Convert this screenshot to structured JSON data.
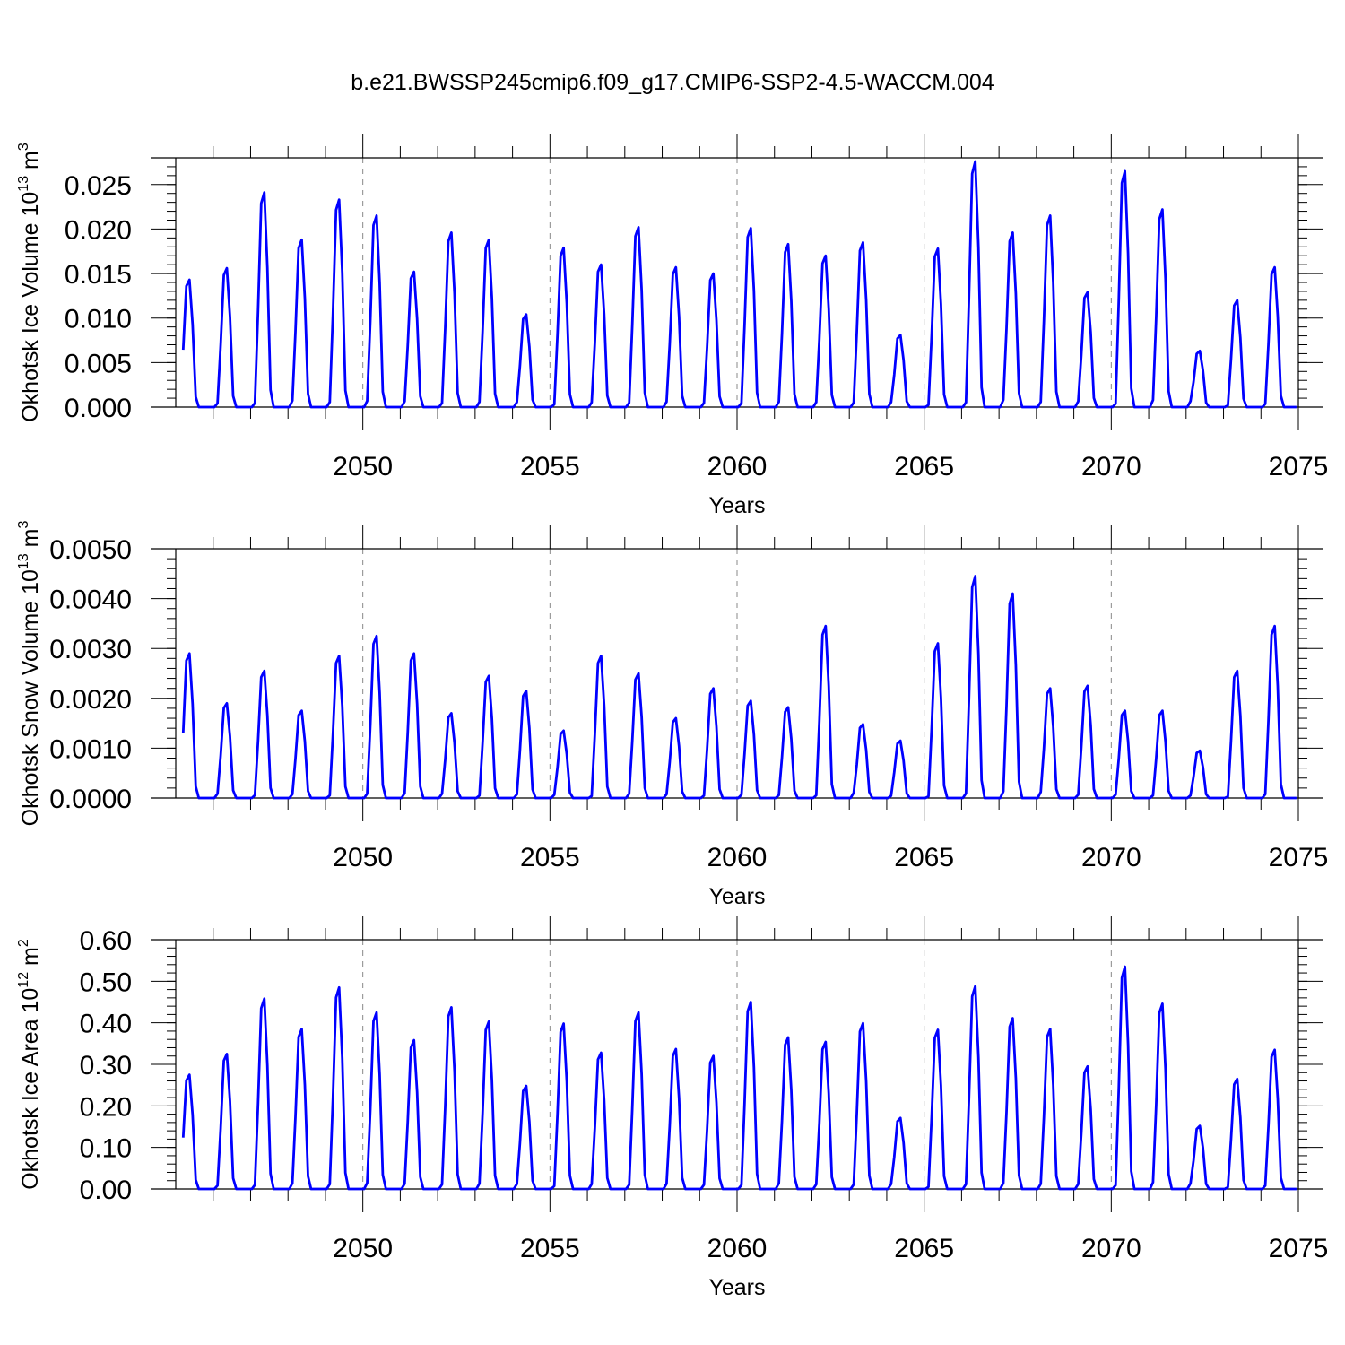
{
  "figure_title": "b.e21.BWSSP245cmip6.f09_g17.CMIP6-SSP2-4.5-WACCM.004",
  "colors": {
    "series": "#0000ff",
    "axis": "#000000",
    "grid": "#888888"
  },
  "chart_data": [
    {
      "type": "line",
      "ylabel": {
        "main": "Okhotsk Ice Volume 10",
        "exp": "13",
        "unit": " m",
        "unit_exp": "3"
      },
      "xlabel": "Years",
      "xlim": [
        2045,
        2075
      ],
      "ylim": [
        0.0,
        0.028
      ],
      "grid": "vertical dashed at 2050, 2055, 2060, 2065, 2070",
      "xticks": [
        "2050",
        "2055",
        "2060",
        "2065",
        "2070",
        "2075"
      ],
      "yticks": [
        "0.000",
        "0.005",
        "0.010",
        "0.015",
        "0.020",
        "0.025"
      ],
      "series": [
        {
          "name": "Okhotsk Ice Volume",
          "peaks": [
            0.0143,
            0.0156,
            0.0241,
            0.0188,
            0.0233,
            0.0215,
            0.0152,
            0.0196,
            0.0188,
            0.0104,
            0.0179,
            0.016,
            0.0202,
            0.0157,
            0.015,
            0.0201,
            0.0183,
            0.017,
            0.0185,
            0.0081,
            0.0178,
            0.0276,
            0.0196,
            0.0215,
            0.0129,
            0.0265,
            0.0222,
            0.0063,
            0.012,
            0.0157
          ]
        }
      ]
    },
    {
      "type": "line",
      "ylabel": {
        "main": "Okhotsk Snow Volume 10",
        "exp": "13",
        "unit": " m",
        "unit_exp": "3"
      },
      "xlabel": "Years",
      "xlim": [
        2045,
        2075
      ],
      "ylim": [
        0.0,
        0.005
      ],
      "grid": "vertical dashed at 2050, 2055, 2060, 2065, 2070",
      "xticks": [
        "2050",
        "2055",
        "2060",
        "2065",
        "2070",
        "2075"
      ],
      "yticks": [
        "0.0000",
        "0.0010",
        "0.0020",
        "0.0030",
        "0.0040",
        "0.0050"
      ],
      "series": [
        {
          "name": "Okhotsk Snow Volume",
          "peaks": [
            0.0029,
            0.0019,
            0.00255,
            0.00175,
            0.00285,
            0.00325,
            0.0029,
            0.0017,
            0.00245,
            0.00215,
            0.00135,
            0.00285,
            0.0025,
            0.0016,
            0.0022,
            0.00195,
            0.00182,
            0.00345,
            0.00148,
            0.00115,
            0.0031,
            0.00445,
            0.0041,
            0.0022,
            0.00225,
            0.00175,
            0.00175,
            0.00095,
            0.00255,
            0.00345
          ]
        }
      ]
    },
    {
      "type": "line",
      "ylabel": {
        "main": "Okhotsk Ice Area 10",
        "exp": "12",
        "unit": " m",
        "unit_exp": "2"
      },
      "xlabel": "Years",
      "xlim": [
        2045,
        2075
      ],
      "ylim": [
        0.0,
        0.6
      ],
      "grid": "vertical dashed at 2050, 2055, 2060, 2065, 2070",
      "xticks": [
        "2050",
        "2055",
        "2060",
        "2065",
        "2070",
        "2075"
      ],
      "yticks": [
        "0.00",
        "0.10",
        "0.20",
        "0.30",
        "0.40",
        "0.50",
        "0.60"
      ],
      "series": [
        {
          "name": "Okhotsk Ice Area",
          "peaks": [
            0.275,
            0.325,
            0.458,
            0.385,
            0.485,
            0.425,
            0.358,
            0.437,
            0.403,
            0.248,
            0.398,
            0.328,
            0.425,
            0.337,
            0.32,
            0.45,
            0.365,
            0.354,
            0.399,
            0.171,
            0.383,
            0.488,
            0.411,
            0.385,
            0.295,
            0.535,
            0.446,
            0.152,
            0.265,
            0.335
          ]
        }
      ]
    }
  ]
}
